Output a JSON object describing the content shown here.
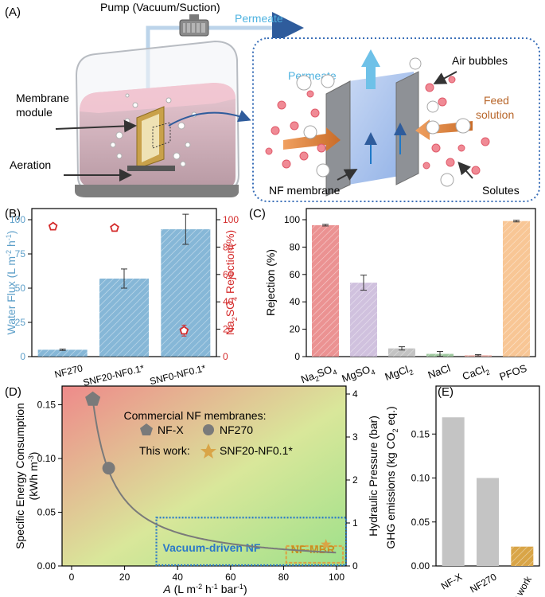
{
  "panel_a": {
    "label": "(A)",
    "pump_label": "Pump (Vacuum/Suction)",
    "permeate_top": "Permeate",
    "permeate_inset": "Permeate",
    "membrane_module": [
      "Membrane",
      "module"
    ],
    "aeration": "Aeration",
    "air_bubbles": "Air bubbles",
    "feed_solution": [
      "Feed",
      "solution"
    ],
    "nf_membrane": "NF membrane",
    "solutes": "Solutes"
  },
  "colors": {
    "blue": "#5d9fc9",
    "red": "#d42b2b",
    "bar_a": "#e87f7f",
    "bar_b": "#c8b6d8",
    "bar_c": "#b9b9b9",
    "bar_d": "#8fbf8f",
    "bar_e": "#f0a8a0",
    "bar_f": "#f7bc82",
    "gray_bar": "#c4c4c4",
    "gold": "#d9a547"
  },
  "chart_data": [
    {
      "panel": "(B)",
      "type": "bar",
      "categories": [
        "NF270",
        "SNF20-NF0.1*",
        "SNF0-NF0.1*"
      ],
      "series": [
        {
          "name": "Water Flux",
          "values": [
            5,
            57,
            93
          ],
          "errors": [
            0.5,
            7,
            11
          ]
        },
        {
          "name": "Na2SO4 Rejection",
          "values": [
            95,
            94,
            19
          ],
          "errors": [
            0.5,
            0.5,
            4
          ]
        }
      ],
      "ylabel_left": [
        "Water Flux (L m",
        "-2",
        " h",
        "-1",
        ")"
      ],
      "ylabel_right": [
        "Na",
        "2",
        "SO",
        "4",
        " Rejection(%)"
      ],
      "ylim": [
        0,
        100
      ],
      "yticks_left": [
        "0",
        "25",
        "50",
        "75",
        "100"
      ],
      "yticks_right": [
        "0",
        "20",
        "40",
        "60",
        "80",
        "100"
      ]
    },
    {
      "panel": "(C)",
      "type": "bar",
      "categories": [
        [
          "Na",
          "2",
          "SO",
          "4"
        ],
        [
          "MgSO",
          "4"
        ],
        [
          "MgCl",
          "2"
        ],
        [
          "NaCl"
        ],
        [
          "CaCl",
          "2"
        ],
        [
          "PFOS"
        ]
      ],
      "values": [
        96,
        54,
        6,
        2,
        1,
        99
      ],
      "errors": [
        0.6,
        5.5,
        1.2,
        1.8,
        0.5,
        0.6
      ],
      "ylabel": "Rejection (%)",
      "ylim": [
        0,
        100
      ],
      "yticks": [
        "0",
        "20",
        "40",
        "60",
        "80",
        "100"
      ]
    },
    {
      "panel": "(D)",
      "type": "scatter",
      "xlabel": [
        "A",
        " (L m",
        "-2",
        " h",
        "-1",
        " bar",
        "-1",
        ")"
      ],
      "ylabel_left": [
        "Specific Energy Consumption",
        "(kWh m",
        "-3",
        ")"
      ],
      "ylabel_right": "Hydraulic Pressure (bar)",
      "xlim": [
        0,
        100
      ],
      "ylim": [
        0,
        0.16
      ],
      "ylim_right": [
        0,
        4
      ],
      "xticks": [
        "0",
        "20",
        "40",
        "60",
        "80",
        "100"
      ],
      "yticks": [
        "0.00",
        "0.05",
        "0.10",
        "0.15"
      ],
      "yticks_right": [
        "0",
        "1",
        "2",
        "3",
        "4"
      ],
      "curve": "y = 1.24 / x",
      "points": [
        {
          "name": "NF-X",
          "x": 8,
          "y": 0.155
        },
        {
          "name": "NF270",
          "x": 14,
          "y": 0.091
        },
        {
          "name": "SNF20-NF0.1*",
          "x": 96,
          "y": 0.02
        }
      ],
      "legend_title": "Commercial NF membranes:",
      "legend_items": [
        "NF-X",
        "NF270"
      ],
      "this_work_label": "This work:",
      "this_work_item": "SNF20-NF0.1*",
      "vacuum_region": {
        "x": [
          32,
          100
        ],
        "y": [
          0,
          0.045
        ],
        "label": "Vacuum-driven NF"
      },
      "mbr_region": {
        "x": [
          81,
          100
        ],
        "y": [
          0,
          0.02
        ],
        "label": "NF-MBR"
      }
    },
    {
      "panel": "(E)",
      "type": "bar",
      "categories": [
        "NF-X",
        "NF270",
        "This work"
      ],
      "values": [
        0.169,
        0.1,
        0.022
      ],
      "ylabel": [
        "GHG emissions (kg CO",
        "2",
        " eq.)"
      ],
      "ylim": [
        0,
        0.2
      ],
      "yticks": [
        "0.00",
        "0.05",
        "0.10",
        "0.15"
      ]
    }
  ]
}
